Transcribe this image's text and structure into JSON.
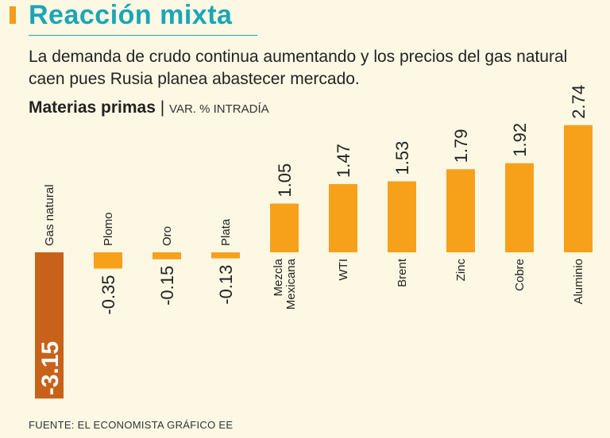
{
  "header": {
    "title": "Reacción mixta",
    "subtitle": "La demanda de crudo continua aumentando y los precios del gas natural caen pues Rusia planea abastecer mercado.",
    "chart_label_bold": "Materias primas",
    "chart_label_sep": " | ",
    "chart_label_rest": "VAR. % INTRADÍA"
  },
  "footer": {
    "source": "FUENTE: EL ECONOMISTA GRÁFICO EE"
  },
  "colors": {
    "positive": "#f7a11b",
    "negative_small": "#f7a11b",
    "negative_large": "#c8621a",
    "title": "#1aa6b7",
    "background": "#fdf8e4"
  },
  "chart_data": {
    "type": "bar",
    "title": "Materias primas",
    "subtitle": "VAR. % INTRADÍA",
    "categories": [
      "Gas natural",
      "Plomo",
      "Oro",
      "Plata",
      "Mezcla Mexicana",
      "WTI",
      "Brent",
      "Zinc",
      "Cobre",
      "Aluminio"
    ],
    "values": [
      -3.15,
      -0.35,
      -0.15,
      -0.13,
      1.05,
      1.47,
      1.53,
      1.79,
      1.92,
      2.74
    ],
    "value_labels": [
      "-3.15",
      "-0.35",
      "-0.15",
      "-0.13",
      "1.05",
      "1.47",
      "1.53",
      "1.79",
      "1.92",
      "2.74"
    ],
    "xlabel": "",
    "ylabel": "",
    "grid": false,
    "legend": "none"
  }
}
